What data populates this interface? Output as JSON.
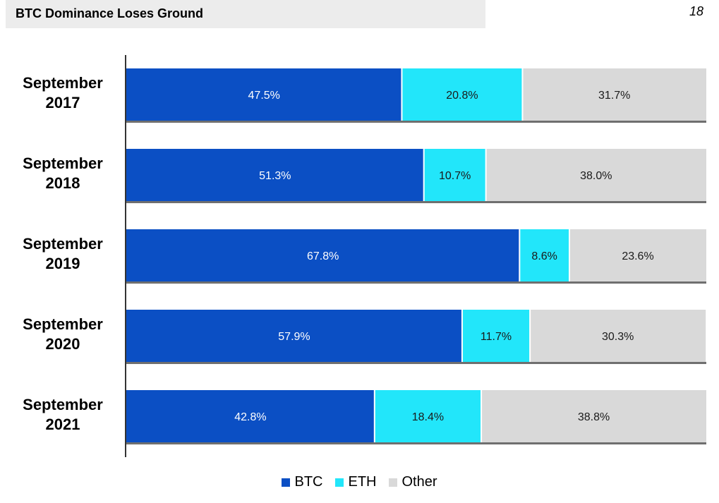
{
  "header": {
    "title": "BTC Dominance Loses Ground",
    "page_number": "18"
  },
  "chart_data": {
    "type": "bar",
    "orientation": "horizontal",
    "stacked": true,
    "title": "",
    "xlabel": "",
    "ylabel": "",
    "xlim": [
      0,
      100
    ],
    "grid": false,
    "legend_placement": "bottom-center",
    "categories": [
      [
        "September",
        "2017"
      ],
      [
        "September",
        "2018"
      ],
      [
        "September",
        "2019"
      ],
      [
        "September",
        "2020"
      ],
      [
        "September",
        "2021"
      ]
    ],
    "series": [
      {
        "name": "BTC",
        "color": "#0b4fc4",
        "label_color": "#ffffff",
        "values": [
          47.5,
          51.3,
          67.8,
          57.9,
          42.8
        ],
        "labels": [
          "47.5%",
          "51.3%",
          "67.8%",
          "57.9%",
          "42.8%"
        ]
      },
      {
        "name": "ETH",
        "color": "#22e6fa",
        "label_color": "#1a1a1a",
        "values": [
          20.8,
          10.7,
          8.6,
          11.7,
          18.4
        ],
        "labels": [
          "20.8%",
          "10.7%",
          "8.6%",
          "11.7%",
          "18.4%"
        ]
      },
      {
        "name": "Other",
        "color": "#d9d9d9",
        "label_color": "#1a1a1a",
        "values": [
          31.7,
          38.0,
          23.6,
          30.3,
          38.8
        ],
        "labels": [
          "31.7%",
          "38.0%",
          "23.6%",
          "30.3%",
          "38.8%"
        ]
      }
    ]
  }
}
